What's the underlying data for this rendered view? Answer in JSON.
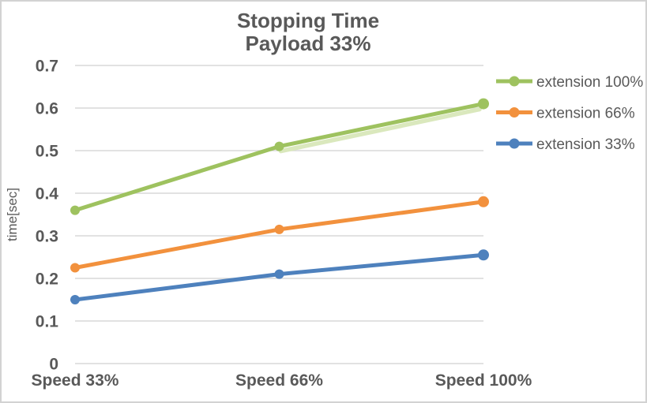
{
  "chart": {
    "title_line1": "Stopping Time",
    "title_line2": "Payload 33%",
    "ylabel": "time[sec]"
  },
  "chart_data": {
    "type": "line",
    "title": "Stopping Time",
    "subtitle": "Payload 33%",
    "xlabel": "",
    "ylabel": "time[sec]",
    "categories": [
      "Speed 33%",
      "Speed 66%",
      "Speed 100%"
    ],
    "series": [
      {
        "name": "extension 100%",
        "color": "#9EC25F",
        "values": [
          0.36,
          0.51,
          0.61
        ],
        "has_shadow": true
      },
      {
        "name": "extension 66%",
        "color": "#F2913D",
        "values": [
          0.225,
          0.315,
          0.38
        ],
        "has_shadow": false
      },
      {
        "name": "extension 33%",
        "color": "#4E81BD",
        "values": [
          0.15,
          0.21,
          0.255
        ],
        "has_shadow": false
      }
    ],
    "ylim": [
      0,
      0.7
    ],
    "ytick_step": 0.1,
    "yticks": [
      "0",
      "0.1",
      "0.2",
      "0.3",
      "0.4",
      "0.5",
      "0.6",
      "0.7"
    ],
    "grid": true,
    "legend_position": "right",
    "colors": {
      "grid": "#D9D9D9",
      "text": "#595959",
      "border": "#D2D2D2",
      "background": "#FFFFFF",
      "green_shadow": "#DAE8BD"
    }
  }
}
